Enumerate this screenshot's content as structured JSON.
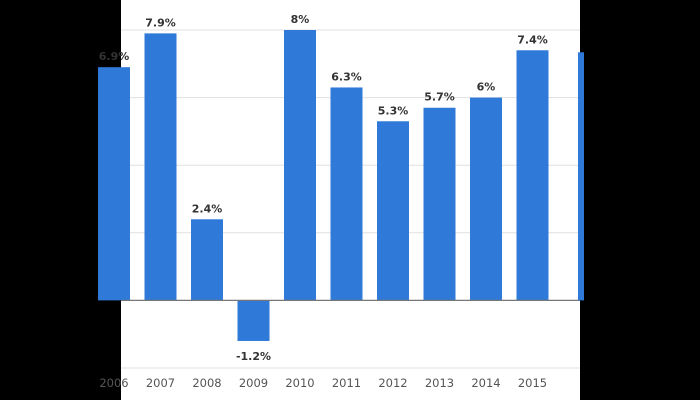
{
  "chart_data": {
    "type": "bar",
    "categories": [
      "2006",
      "2007",
      "2008",
      "2009",
      "2010",
      "2011",
      "2012",
      "2013",
      "2014",
      "2015"
    ],
    "values": [
      6.9,
      7.9,
      2.4,
      -1.2,
      8.0,
      6.3,
      5.3,
      5.7,
      6.0,
      7.4
    ],
    "data_labels": [
      "6.9%",
      "7.9%",
      "2.4%",
      "-1.2%",
      "8%",
      "6.3%",
      "5.3%",
      "5.7%",
      "6%",
      "7.4%"
    ],
    "title": "",
    "xlabel": "",
    "ylabel": "",
    "ylim": [
      -2,
      10
    ],
    "gridlines": [
      -2,
      0,
      2,
      4,
      6,
      8
    ],
    "grid": true,
    "colors": {
      "bar": "#2f79d8",
      "grid": "#e0e0e0",
      "zero_line": "#777777",
      "background": "#ffffff",
      "frame": "#000000"
    }
  }
}
